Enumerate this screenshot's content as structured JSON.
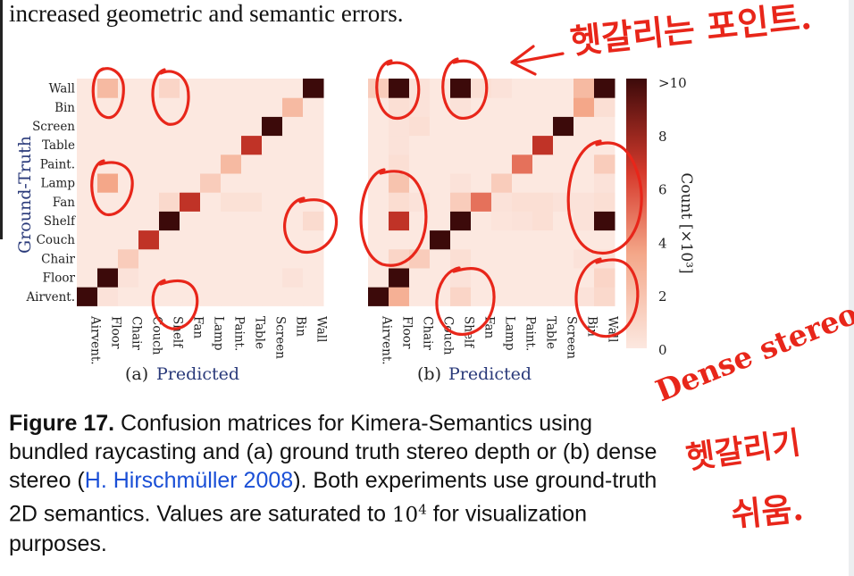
{
  "fragment_text": "increased geometric and semantic errors.",
  "labels": [
    "Airvent.",
    "Floor",
    "Chair",
    "Couch",
    "Shelf",
    "Fan",
    "Lamp",
    "Paint.",
    "Table",
    "Screen",
    "Bin",
    "Wall"
  ],
  "y_axis_title": "Ground-Truth",
  "colorbar": {
    "label": "Count [×10³]",
    "ticks": [
      "0",
      "2",
      "4",
      "6",
      "8",
      ">10"
    ],
    "max": 10
  },
  "colors": {
    "low": "#fce8e0",
    "high": "#3c0a0a",
    "annotation": "#e8261a",
    "link": "#1a4fd6"
  },
  "matrices": [
    {
      "sub_label": "(a)",
      "x_title": "Predicted",
      "cells": [
        [
          10,
          0.3,
          0,
          0,
          0,
          0,
          0,
          0,
          0,
          0,
          0,
          0
        ],
        [
          0,
          10,
          0.3,
          0,
          0,
          0,
          0,
          0,
          0,
          0,
          0.3,
          0
        ],
        [
          0,
          0,
          1.5,
          0,
          0,
          0,
          0,
          0,
          0,
          0,
          0,
          0
        ],
        [
          0,
          0,
          0,
          7,
          0,
          0,
          0,
          0,
          0,
          0,
          0,
          0
        ],
        [
          0,
          0,
          0,
          0,
          10,
          0,
          0,
          0,
          0,
          0,
          0,
          0.7
        ],
        [
          0,
          0,
          0,
          0,
          0.8,
          7,
          0,
          0.4,
          0.4,
          0,
          0,
          0
        ],
        [
          0,
          3.5,
          0,
          0,
          0,
          0,
          1.5,
          0,
          0,
          0,
          0,
          0
        ],
        [
          0,
          0,
          0,
          0,
          0,
          0,
          0,
          2.5,
          0,
          0,
          0,
          0
        ],
        [
          0,
          0,
          0,
          0,
          0,
          0,
          0,
          0,
          7,
          0,
          0,
          0
        ],
        [
          0,
          0,
          0,
          0,
          0,
          0,
          0,
          0,
          0,
          10,
          0,
          0
        ],
        [
          0,
          0,
          0,
          0,
          0,
          0,
          0,
          0,
          0,
          0,
          2.5,
          0
        ],
        [
          0,
          2.5,
          0,
          0,
          1,
          0,
          0,
          0,
          0,
          0,
          0,
          10
        ]
      ]
    },
    {
      "sub_label": "(b)",
      "x_title": "Predicted",
      "cells": [
        [
          10,
          3,
          0,
          0,
          1,
          0,
          0,
          0,
          0,
          0,
          0.3,
          0.8
        ],
        [
          0,
          10,
          0,
          0,
          0.3,
          0,
          0,
          0,
          0,
          0,
          0,
          1
        ],
        [
          0,
          1,
          1.5,
          0,
          0.5,
          0,
          0,
          0,
          0,
          0,
          0.3,
          0.3
        ],
        [
          0,
          0,
          0,
          10,
          0,
          0,
          0,
          0,
          0,
          0,
          0,
          0
        ],
        [
          0,
          7,
          0,
          0,
          10,
          0,
          0.2,
          0.3,
          0.5,
          0,
          0.3,
          10
        ],
        [
          0,
          0.6,
          0.3,
          0,
          1.5,
          5,
          0.3,
          0.5,
          0.5,
          0.3,
          0.3,
          0.5
        ],
        [
          0,
          2,
          0,
          0,
          0.3,
          0,
          1.5,
          0,
          0,
          0,
          0,
          0.3
        ],
        [
          0,
          0.5,
          0,
          0,
          0,
          0,
          0,
          5,
          0,
          0,
          0,
          1.5
        ],
        [
          0,
          0.3,
          0,
          0,
          0,
          0,
          0,
          0,
          7,
          0,
          0,
          0
        ],
        [
          0,
          0.3,
          0.5,
          0,
          0,
          0,
          0,
          0,
          0,
          10,
          0,
          0
        ],
        [
          0,
          0.5,
          0.3,
          0,
          0.3,
          0,
          0,
          0,
          0,
          0,
          3.5,
          0.5
        ],
        [
          1.5,
          10,
          0.3,
          0,
          10,
          0.5,
          0.3,
          0,
          0,
          0,
          2.5,
          10
        ]
      ]
    }
  ],
  "caption": {
    "figure_label": "Figure 17.",
    "text_before_cite": " Confusion matrices for Kimera-Semantics using bundled raycasting and (a) ground truth stereo depth or (b) dense stereo (",
    "cite": "H. Hirschmüller 2008",
    "text_after_cite": "). Both experiments use ground-truth 2D semantics. Values are saturated to ",
    "math_base": "10",
    "math_exp": "4",
    "text_end": " for visualization purposes."
  },
  "handwriting": {
    "note1": "헷갈리는 포인트.",
    "note2_line1": "Dense stereo는",
    "note2_line2": "헷갈리기",
    "note2_line3": "쉬움."
  }
}
